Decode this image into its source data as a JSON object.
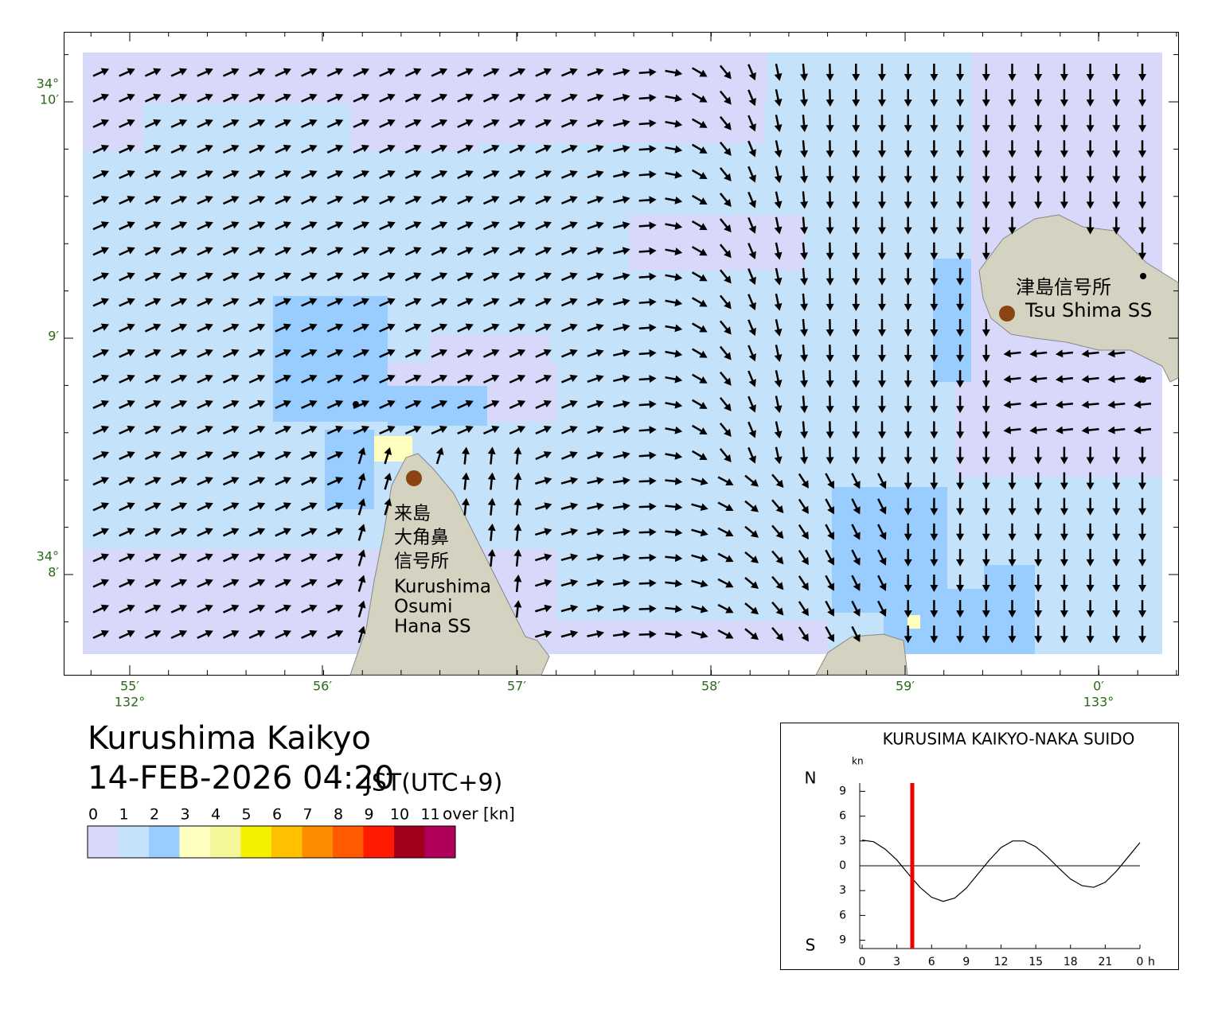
{
  "map": {
    "lat_labels": [
      [
        "34°",
        "10′"
      ],
      [
        "9′"
      ],
      [
        "34°",
        "8′"
      ]
    ],
    "lon_labels": [
      [
        "55′",
        "132°"
      ],
      [
        "56′"
      ],
      [
        "57′"
      ],
      [
        "58′"
      ],
      [
        "59′"
      ],
      [
        "0′",
        "133°"
      ]
    ],
    "stations": [
      {
        "lines": [
          "津島信号所",
          "Tsu Shima SS"
        ]
      },
      {
        "lines": [
          "来島",
          "大角鼻",
          "信号所",
          "Kurushima",
          "Osumi",
          "Hana SS"
        ]
      }
    ]
  },
  "title": "Kurushima Kaikyo",
  "datetime": "14-FEB-2026 04:20",
  "timezone": "JST(UTC+9)",
  "legend": {
    "labels": [
      "0",
      "1",
      "2",
      "3",
      "4",
      "5",
      "6",
      "7",
      "8",
      "9",
      "10",
      "11"
    ],
    "unit": "over [kn]",
    "colors": [
      "#d8d8fa",
      "#c4e2fa",
      "#99ccff",
      "#ffffc0",
      "#f5f59a",
      "#f5f000",
      "#ffc000",
      "#ff8c00",
      "#ff5a00",
      "#ff1a00",
      "#a0001e",
      "#b0005a"
    ]
  },
  "tide_chart": {
    "type": "line",
    "title": "KURUSIMA KAIKYO-NAKA SUIDO",
    "y_unit": "kn",
    "x_unit": "h",
    "north": "N",
    "south": "S",
    "xlim": [
      0,
      24
    ],
    "xticks": [
      0,
      3,
      6,
      9,
      12,
      15,
      18,
      21,
      {
        "value": 24,
        "label": "0"
      }
    ],
    "ylim": [
      -10,
      10
    ],
    "yticks": [
      {
        "value": -9,
        "label": "9"
      },
      {
        "value": -6,
        "label": "6"
      },
      {
        "value": -3,
        "label": "3"
      },
      0,
      3,
      6,
      9
    ],
    "x": [
      0,
      1,
      2,
      3,
      4,
      5,
      6,
      7,
      8,
      9,
      10,
      11,
      12,
      13,
      14,
      15,
      16,
      17,
      18,
      19,
      20,
      21,
      22,
      23,
      24
    ],
    "values": [
      3.1,
      2.9,
      2.0,
      0.7,
      -1.0,
      -2.6,
      -3.8,
      -4.3,
      -3.9,
      -2.7,
      -1.0,
      0.7,
      2.2,
      3.0,
      3.0,
      2.3,
      1.1,
      -0.3,
      -1.6,
      -2.4,
      -2.6,
      -2.0,
      -0.6,
      1.1,
      2.8
    ],
    "color": "#000000",
    "current_time": 4.33,
    "current_color": "#ee0000"
  }
}
